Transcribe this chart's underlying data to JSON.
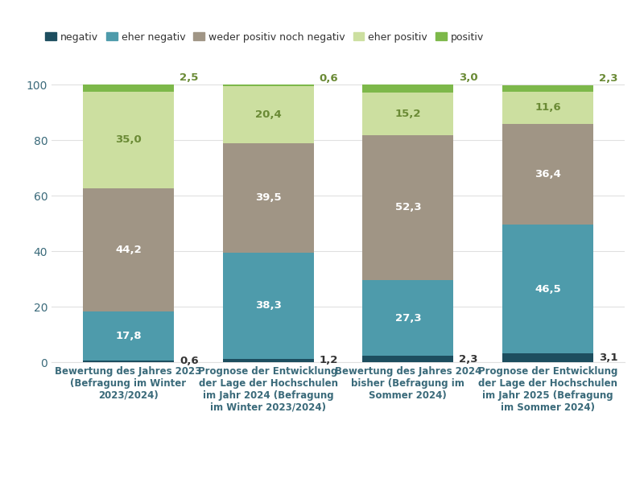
{
  "categories": [
    "Bewertung des Jahres 2023\n(Befragung im Winter\n2023/2024)",
    "Prognose der Entwicklung\nder Lage der Hochschulen\nim Jahr 2024 (Befragung\nim Winter 2023/2024)",
    "Bewertung des Jahres 2024\nbisher (Befragung im\nSommer 2024)",
    "Prognose der Entwicklung\nder Lage der Hochschulen\nim Jahr 2025 (Befragung\nim Sommer 2024)"
  ],
  "segments": {
    "negativ": [
      0.6,
      1.2,
      2.3,
      3.1
    ],
    "eher negativ": [
      17.8,
      38.3,
      27.3,
      46.5
    ],
    "weder positiv noch negativ": [
      44.2,
      39.5,
      52.3,
      36.4
    ],
    "eher positiv": [
      35.0,
      20.4,
      15.2,
      11.6
    ],
    "positiv": [
      2.5,
      0.6,
      3.0,
      2.3
    ]
  },
  "colors": {
    "negativ": "#1d4e5f",
    "eher negativ": "#4e9bab",
    "weder positiv noch negativ": "#a09585",
    "eher positiv": "#ccdfa0",
    "positiv": "#7db84a"
  },
  "label_colors": {
    "negativ": "#ffffff",
    "eher negativ": "#ffffff",
    "weder positiv noch negativ": "#ffffff",
    "eher positiv": "#6a8a35",
    "positiv": "#6a8a35"
  },
  "outside_label_color": "#6a8a35",
  "negativ_outside_color": "#333333",
  "bar_width": 0.65,
  "bar_positions": [
    0,
    1,
    2,
    3
  ],
  "ylim": [
    0,
    107
  ],
  "yticks": [
    0,
    20,
    40,
    60,
    80,
    100
  ],
  "background_color": "#ffffff",
  "grid_color": "#e0e0e0",
  "axis_color": "#3a6a7a",
  "tick_color": "#3a6a7a",
  "ytick_fontsize": 10,
  "value_fontsize": 9.5,
  "xlabel_fontsize": 8.5,
  "legend_fontsize": 9.0
}
